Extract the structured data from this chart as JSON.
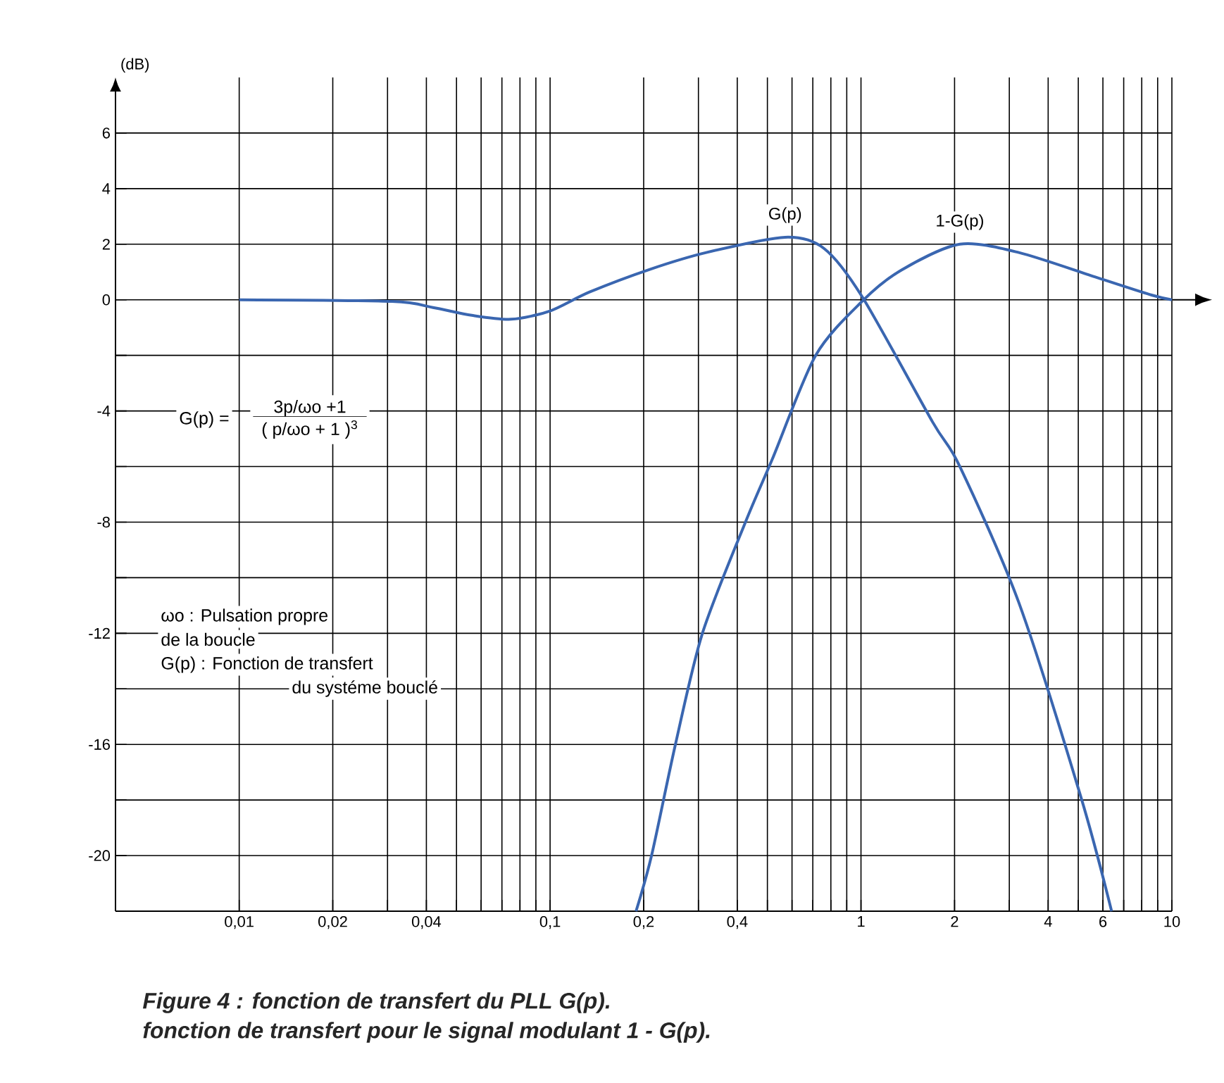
{
  "chart_data": {
    "type": "line",
    "ylabel": "(dB)",
    "log": "x",
    "grid": true,
    "annotations": [
      "G(p) =",
      "3p/ωo +1",
      "( p/ωo + 1 )$^{3}$",
      "ωo : Pulsation propre",
      "de la boucle",
      "G(p) : Fonction de transfert",
      "du systéme bouclé",
      "Figure 4 : fonction de transfert du PLL G(p).",
      "fonction de transfert pour le signal modulant 1 - G(p)."
    ],
    "xlim": [
      0.004,
      10
    ],
    "ylim": [
      -22,
      8
    ],
    "xticks": [
      {
        "value": 0.01,
        "label": "0,01"
      },
      {
        "value": 0.02,
        "label": "0,02"
      },
      {
        "value": 0.03,
        "label": null
      },
      {
        "value": 0.04,
        "label": "0,04"
      },
      {
        "value": 0.05,
        "label": null
      },
      {
        "value": 0.06,
        "label": null
      },
      {
        "value": 0.07,
        "label": null
      },
      {
        "value": 0.08,
        "label": null
      },
      {
        "value": 0.09,
        "label": null
      },
      {
        "value": 0.1,
        "label": "0,1"
      },
      {
        "value": 0.2,
        "label": "0,2"
      },
      {
        "value": 0.3,
        "label": null
      },
      {
        "value": 0.4,
        "label": "0,4"
      },
      {
        "value": 0.5,
        "label": null
      },
      {
        "value": 0.6,
        "label": null
      },
      {
        "value": 0.7,
        "label": null
      },
      {
        "value": 0.8,
        "label": null
      },
      {
        "value": 0.9,
        "label": null
      },
      1,
      2,
      {
        "value": 3,
        "label": null
      },
      4,
      {
        "value": 5,
        "label": null
      },
      6,
      {
        "value": 7,
        "label": null
      },
      {
        "value": 8,
        "label": null
      },
      {
        "value": 9,
        "label": null
      },
      10
    ],
    "yticks": [
      {
        "value": -22,
        "label": null
      },
      -20,
      {
        "value": -18,
        "label": null
      },
      -16,
      {
        "value": -14,
        "label": null
      },
      -12,
      {
        "value": -10,
        "label": null
      },
      -8,
      {
        "value": -6,
        "label": null
      },
      -4,
      {
        "value": -2,
        "label": null
      },
      0,
      2,
      4,
      6
    ],
    "series": [
      {
        "name": "G(p)",
        "color": "#3a66b0",
        "x": [
          0.01,
          0.031,
          0.042,
          0.056,
          0.075,
          0.1,
          0.134,
          0.21,
          0.318,
          0.57,
          0.76,
          1.01,
          1.7,
          2.08,
          3.22,
          5.1,
          6.4
        ],
        "values": [
          0,
          -0.06,
          -0.28,
          -0.56,
          -0.7,
          -0.4,
          0.28,
          1.1,
          1.7,
          2.25,
          1.85,
          0.1,
          -4.4,
          -6.0,
          -10.9,
          -17.9,
          -22
        ]
      },
      {
        "name": "1-G(p)",
        "color": "#3a66b0",
        "x": [
          0.189,
          0.212,
          0.253,
          0.309,
          0.425,
          0.52,
          0.715,
          1.01,
          1.35,
          2.08,
          3.22,
          5.74,
          8.6,
          10
        ],
        "values": [
          -22,
          -20,
          -16,
          -12,
          -8,
          -5.7,
          -2.0,
          -0.05,
          1.07,
          2.0,
          1.7,
          0.8,
          0.17,
          0
        ]
      }
    ]
  }
}
